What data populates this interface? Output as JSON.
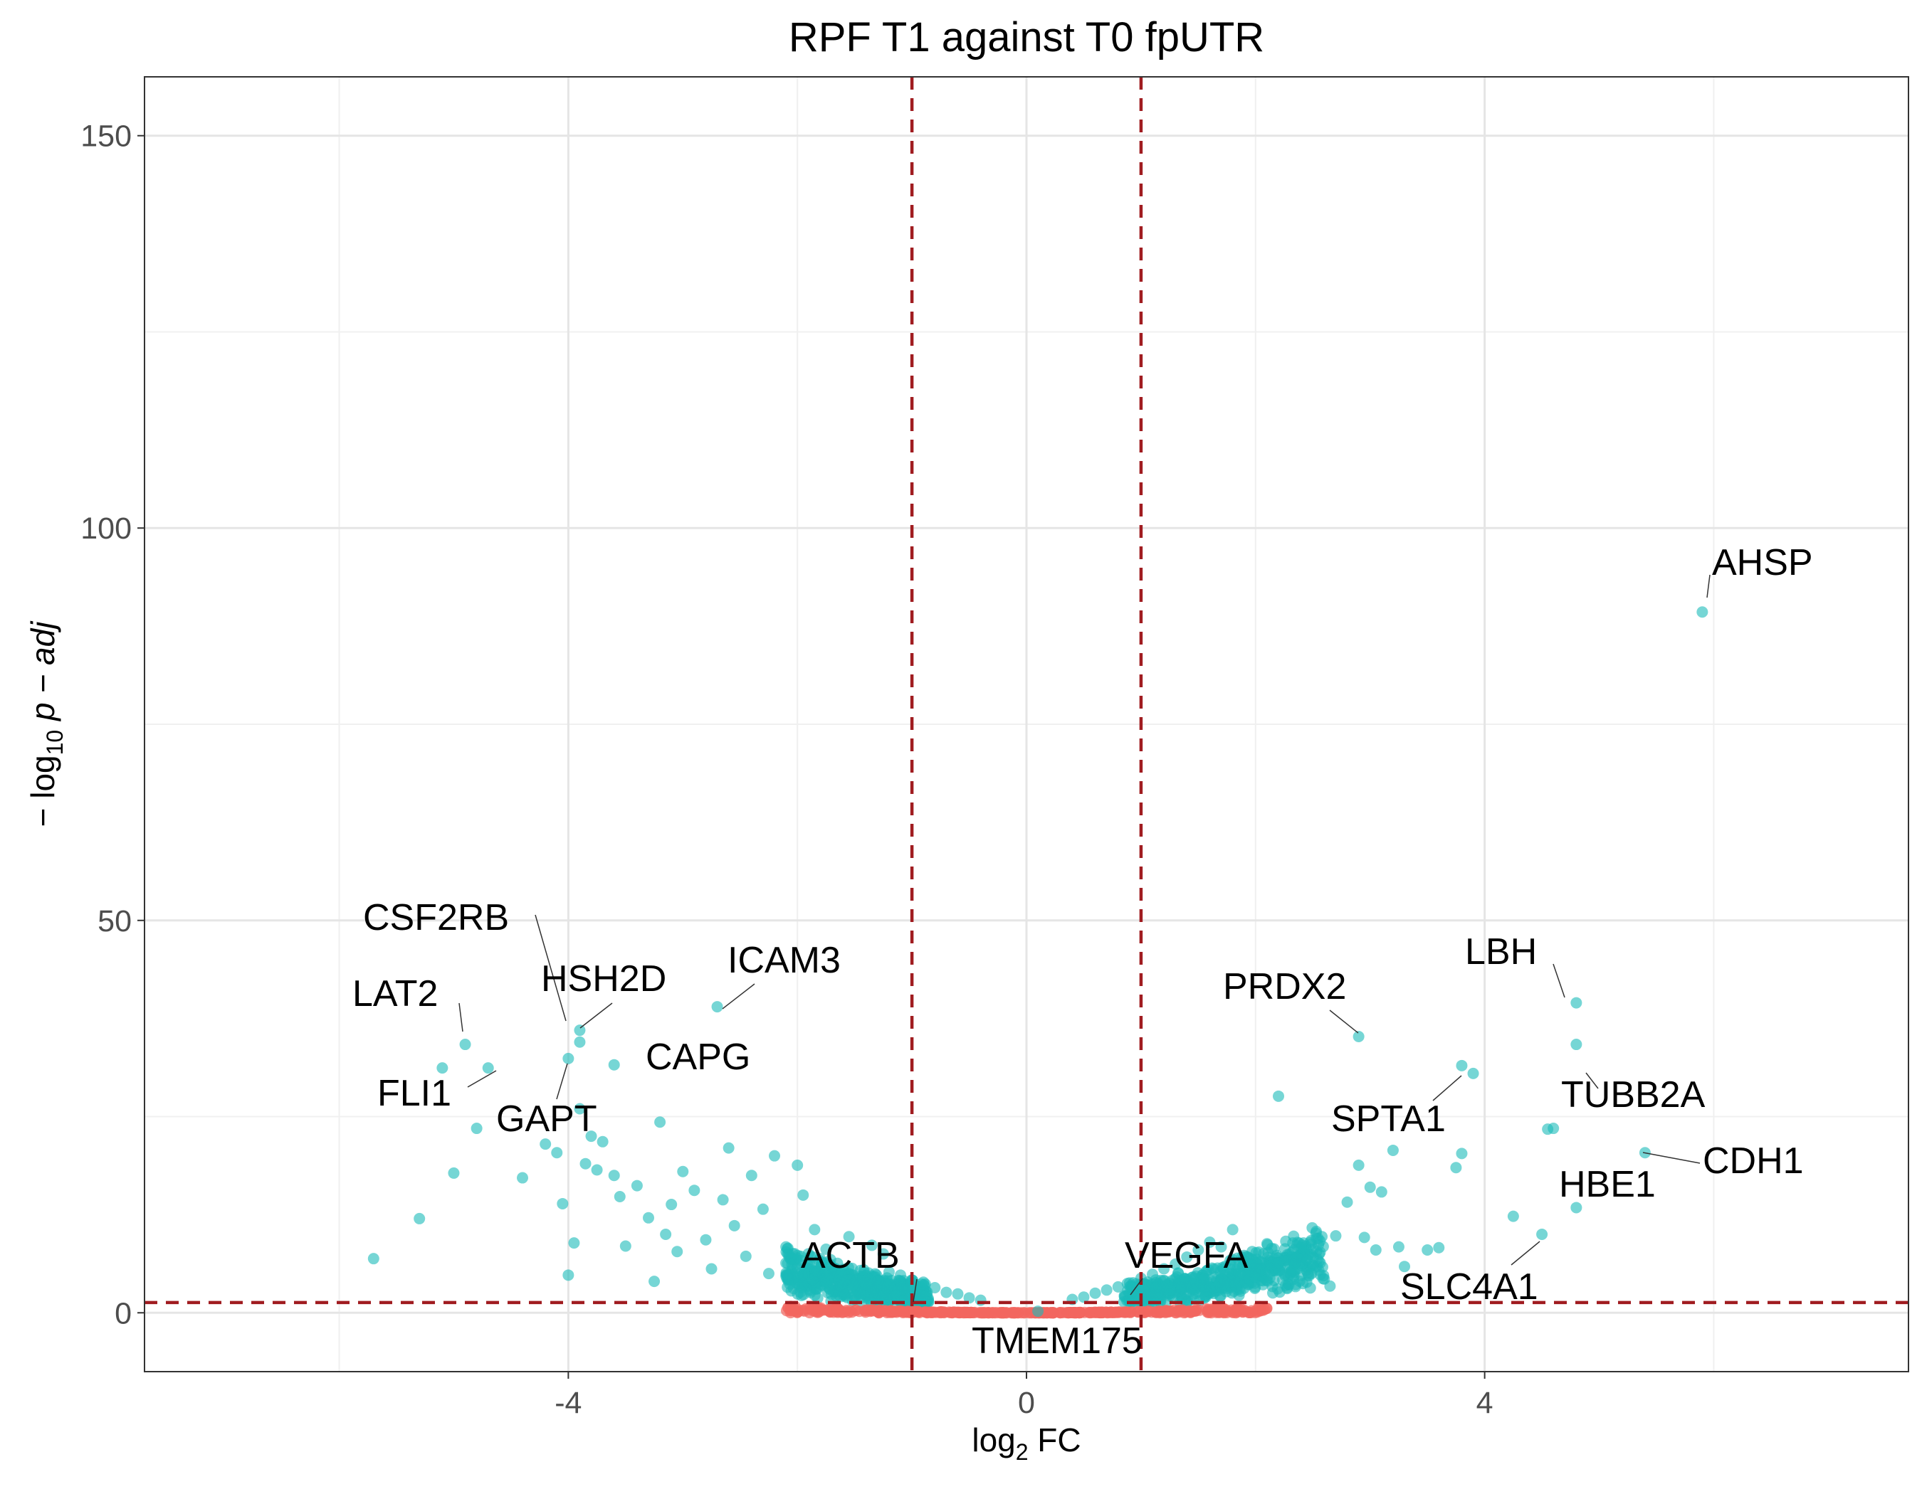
{
  "chart_data": {
    "type": "scatter",
    "title": "RPF T1 against T0 fpUTR",
    "xlabel": "log2 FC",
    "ylabel": "−log10 p − adj",
    "xlim": [
      -7.7,
      7.7
    ],
    "ylim": [
      -7.5,
      157.5
    ],
    "x_ticks": [
      -4,
      0,
      4
    ],
    "y_ticks": [
      0,
      50,
      100,
      150
    ],
    "grid": true,
    "thresholds": {
      "log2fc": [
        -1,
        1
      ],
      "neg_log10_padj": 1.3
    },
    "colors": {
      "significant": "#1ABAB9",
      "not_significant": "#F2665F",
      "threshold_line": "#A01C20"
    },
    "labeled_points": [
      {
        "gene": "AHSP",
        "x": 5.9,
        "y": 89.3
      },
      {
        "gene": "CSF2RB",
        "x": -3.9,
        "y": 36.0
      },
      {
        "gene": "HSH2D",
        "x": -3.9,
        "y": 34.5
      },
      {
        "gene": "ICAM3",
        "x": -2.7,
        "y": 39.0
      },
      {
        "gene": "LAT2",
        "x": -4.9,
        "y": 34.2
      },
      {
        "gene": "FLI1",
        "x": -4.7,
        "y": 31.2
      },
      {
        "gene": "GAPT",
        "x": -4.0,
        "y": 32.4
      },
      {
        "gene": "CAPG",
        "x": -3.6,
        "y": 31.6
      },
      {
        "gene": "PRDX2",
        "x": 2.9,
        "y": 35.2
      },
      {
        "gene": "LBH",
        "x": 4.8,
        "y": 39.5
      },
      {
        "gene": "TUBB2A",
        "x": 4.8,
        "y": 34.2
      },
      {
        "gene": "SPTA1",
        "x": 3.8,
        "y": 31.5
      },
      {
        "gene": "CDH1",
        "x": 5.4,
        "y": 20.4
      },
      {
        "gene": "HBE1",
        "x": 4.8,
        "y": 13.4
      },
      {
        "gene": "SLC4A1",
        "x": 4.5,
        "y": 10.0
      },
      {
        "gene": "ACTB",
        "x": -0.95,
        "y": 1.6
      },
      {
        "gene": "VEGFA",
        "x": 0.9,
        "y": 1.5
      },
      {
        "gene": "TMEM175",
        "x": 0.1,
        "y": 0.2
      }
    ],
    "other_significant_points": [
      [
        -5.7,
        6.9
      ],
      [
        -5.3,
        12.0
      ],
      [
        -5.1,
        31.2
      ],
      [
        -5.0,
        17.8
      ],
      [
        -4.8,
        23.5
      ],
      [
        -4.4,
        17.2
      ],
      [
        -4.2,
        21.5
      ],
      [
        -4.1,
        20.4
      ],
      [
        -4.05,
        13.9
      ],
      [
        -4.0,
        4.8
      ],
      [
        -3.95,
        8.9
      ],
      [
        -3.9,
        26.0
      ],
      [
        -3.85,
        19.0
      ],
      [
        -3.8,
        22.5
      ],
      [
        -3.75,
        18.2
      ],
      [
        -3.7,
        21.8
      ],
      [
        -3.6,
        17.5
      ],
      [
        -3.55,
        14.8
      ],
      [
        -3.5,
        8.5
      ],
      [
        -3.4,
        16.2
      ],
      [
        -3.3,
        12.1
      ],
      [
        -3.2,
        24.3
      ],
      [
        -3.15,
        10.0
      ],
      [
        -3.1,
        13.8
      ],
      [
        -3.0,
        18.0
      ],
      [
        -2.9,
        15.6
      ],
      [
        -2.8,
        9.3
      ],
      [
        -2.75,
        5.6
      ],
      [
        -2.65,
        14.4
      ],
      [
        -2.6,
        21.0
      ],
      [
        -2.55,
        11.1
      ],
      [
        -2.4,
        17.5
      ],
      [
        -2.3,
        13.2
      ],
      [
        -2.2,
        20.0
      ],
      [
        -2.1,
        8.4
      ],
      [
        -2.0,
        18.8
      ],
      [
        -1.95,
        15.0
      ],
      [
        -3.25,
        4.0
      ],
      [
        -3.05,
        7.8
      ],
      [
        -2.45,
        7.2
      ],
      [
        -2.25,
        5.0
      ],
      [
        -1.85,
        10.6
      ],
      [
        -1.75,
        8.1
      ],
      [
        -1.65,
        6.3
      ],
      [
        -1.55,
        9.7
      ],
      [
        -1.45,
        5.4
      ],
      [
        -1.35,
        8.6
      ],
      [
        -1.25,
        7.5
      ],
      [
        -1.2,
        5.2
      ],
      [
        -1.1,
        4.8
      ],
      [
        -0.9,
        3.9
      ],
      [
        -0.8,
        3.2
      ],
      [
        -0.7,
        2.6
      ],
      [
        -0.6,
        2.4
      ],
      [
        -0.5,
        1.9
      ],
      [
        -0.4,
        1.6
      ],
      [
        0.4,
        1.7
      ],
      [
        0.5,
        2.0
      ],
      [
        0.6,
        2.5
      ],
      [
        0.7,
        2.9
      ],
      [
        0.8,
        3.3
      ],
      [
        0.9,
        3.8
      ],
      [
        1.0,
        4.4
      ],
      [
        1.1,
        4.9
      ],
      [
        1.2,
        5.6
      ],
      [
        1.3,
        6.2
      ],
      [
        1.4,
        7.1
      ],
      [
        1.5,
        8.0
      ],
      [
        1.6,
        9.0
      ],
      [
        1.7,
        8.4
      ],
      [
        1.8,
        10.6
      ],
      [
        1.9,
        7.3
      ],
      [
        2.0,
        6.4
      ],
      [
        2.1,
        8.8
      ],
      [
        2.2,
        27.6
      ],
      [
        2.3,
        5.1
      ],
      [
        2.4,
        8.3
      ],
      [
        2.5,
        6.0
      ],
      [
        2.6,
        4.3
      ],
      [
        2.7,
        9.8
      ],
      [
        2.8,
        14.1
      ],
      [
        2.9,
        18.8
      ],
      [
        3.0,
        16.0
      ],
      [
        3.1,
        15.4
      ],
      [
        3.2,
        20.7
      ],
      [
        3.25,
        8.4
      ],
      [
        3.3,
        5.9
      ],
      [
        3.5,
        8.0
      ],
      [
        3.6,
        8.3
      ],
      [
        3.75,
        18.5
      ],
      [
        3.8,
        20.3
      ],
      [
        3.9,
        30.5
      ],
      [
        4.25,
        12.3
      ],
      [
        4.6,
        23.5
      ],
      [
        4.55,
        23.4
      ],
      [
        2.95,
        9.6
      ],
      [
        3.05,
        8.0
      ],
      [
        2.65,
        3.4
      ],
      [
        2.45,
        6.8
      ],
      [
        2.35,
        3.6
      ],
      [
        1.55,
        4.3
      ],
      [
        1.35,
        3.1
      ],
      [
        1.15,
        2.6
      ]
    ],
    "background_spread": {
      "sig_left_x": [
        -2.1,
        -0.85
      ],
      "sig_right_x": [
        0.85,
        2.6
      ],
      "nonsig_x": [
        -2.1,
        2.1
      ]
    }
  }
}
